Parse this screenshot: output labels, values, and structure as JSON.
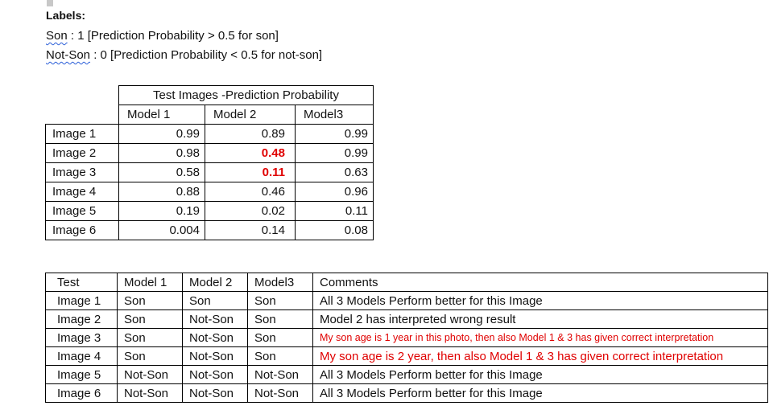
{
  "labels": {
    "title": "Labels:",
    "son_word": "Son",
    "son_rest": " : 1 [Prediction Probability > 0.5 for son]",
    "notson_word": "Not-Son",
    "notson_rest": " : 0 [Prediction Probability < 0.5 for not-son]"
  },
  "prob_table": {
    "group_header": "Test Images -Prediction Probability",
    "headers": [
      "Model 1",
      "Model 2",
      "Model3"
    ],
    "rows": [
      {
        "image": "Image 1",
        "m1": "0.99",
        "m2": "0.89",
        "m3": "0.99"
      },
      {
        "image": "Image 2",
        "m1": "0.98",
        "m2": "0.48",
        "m3": "0.99"
      },
      {
        "image": "Image 3",
        "m1": "0.58",
        "m2": "0.11",
        "m3": "0.63"
      },
      {
        "image": "Image 4",
        "m1": "0.88",
        "m2": "0.46",
        "m3": "0.96"
      },
      {
        "image": "Image 5",
        "m1": "0.19",
        "m2": "0.02",
        "m3": "0.11"
      },
      {
        "image": "Image 6",
        "m1": "0.004",
        "m2": "0.14",
        "m3": "0.08"
      }
    ],
    "highlight_color": "#e00000"
  },
  "result_table": {
    "headers": [
      "Test",
      "Model 1",
      "Model 2",
      "Model3",
      "Comments"
    ],
    "rows": [
      {
        "test": "Image 1",
        "m1": "Son",
        "m2": "Son",
        "m3": "Son",
        "comment": "All 3 Models Perform better for this Image"
      },
      {
        "test": "Image 2",
        "m1": "Son",
        "m2": "Not-Son",
        "m3": "Son",
        "comment": "Model 2 has interpreted wrong result"
      },
      {
        "test": "Image 3",
        "m1": "Son",
        "m2": "Not-Son",
        "m3": "Son",
        "comment": "My son age is 1 year in this photo, then also Model 1 & 3 has given correct interpretation"
      },
      {
        "test": "Image 4",
        "m1": "Son",
        "m2": "Not-Son",
        "m3": "Son",
        "comment": "My son age is 2 year, then also Model 1 & 3 has given correct interpretation"
      },
      {
        "test": "Image 5",
        "m1": "Not-Son",
        "m2": "Not-Son",
        "m3": "Not-Son",
        "comment": "All 3 Models Perform better for this Image"
      },
      {
        "test": "Image 6",
        "m1": "Not-Son",
        "m2": "Not-Son",
        "m3": "Not-Son",
        "comment": "All 3 Models Perform better for this Image"
      }
    ]
  }
}
